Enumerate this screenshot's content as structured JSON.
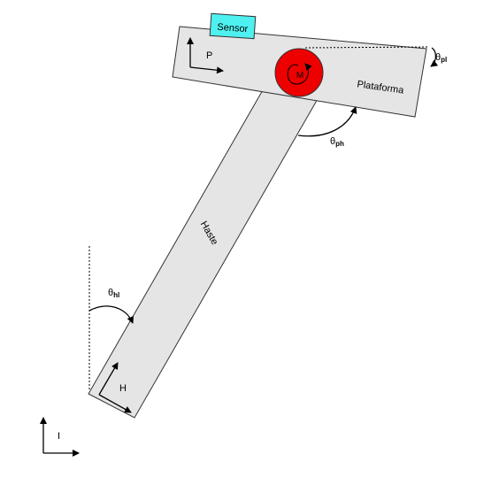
{
  "diagram": {
    "sensor_label": "Sensor",
    "platform_label": "Plataforma",
    "rod_label": "Haste",
    "motor_label": "M",
    "frame_platform_label": "P",
    "frame_rod_label": "H",
    "frame_inertial_label": "I",
    "theta_symbol": "θ",
    "angle_platform_inertial_sub": "pl",
    "angle_platform_rod_sub": "ph",
    "angle_rod_inertial_sub": "hl",
    "colors": {
      "sensor": "#4ff0f0",
      "motor": "#ee0000",
      "body": "#e5e5e5"
    }
  }
}
